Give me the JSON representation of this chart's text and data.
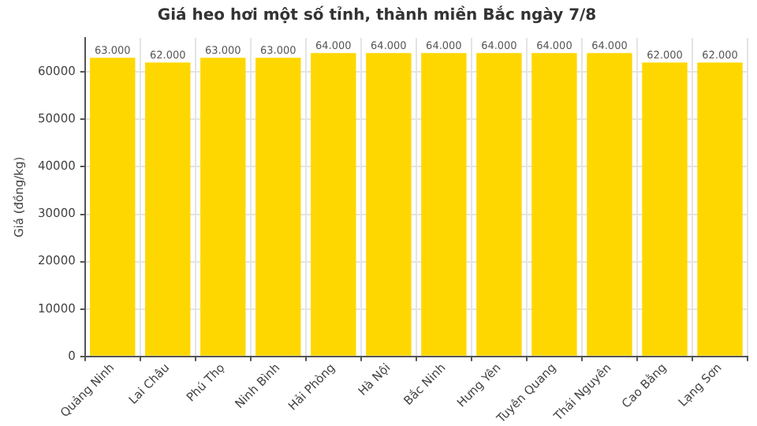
{
  "chart_data": {
    "type": "bar",
    "title": "Giá heo hơi một số tỉnh, thành miền Bắc ngày 7/8",
    "ylabel": "Giá (đồng/kg)",
    "categories": [
      "Quảng Ninh",
      "Lai Châu",
      "Phú Thọ",
      "Ninh Bình",
      "Hải Phòng",
      "Hà Nội",
      "Bắc Ninh",
      "Hưng Yên",
      "Tuyên Quang",
      "Thái Nguyên",
      "Cao Bằng",
      "Lạng Sơn"
    ],
    "values": [
      63000,
      62000,
      63000,
      63000,
      64000,
      64000,
      64000,
      64000,
      64000,
      64000,
      62000,
      62000
    ],
    "value_labels": [
      "63.000",
      "62.000",
      "63.000",
      "63.000",
      "64.000",
      "64.000",
      "64.000",
      "64.000",
      "64.000",
      "64.000",
      "62.000",
      "62.000"
    ],
    "color": "#ffd700",
    "ylim": [
      0,
      67200
    ],
    "yticks": [
      0,
      10000,
      20000,
      30000,
      40000,
      50000,
      60000
    ],
    "grid": true
  }
}
